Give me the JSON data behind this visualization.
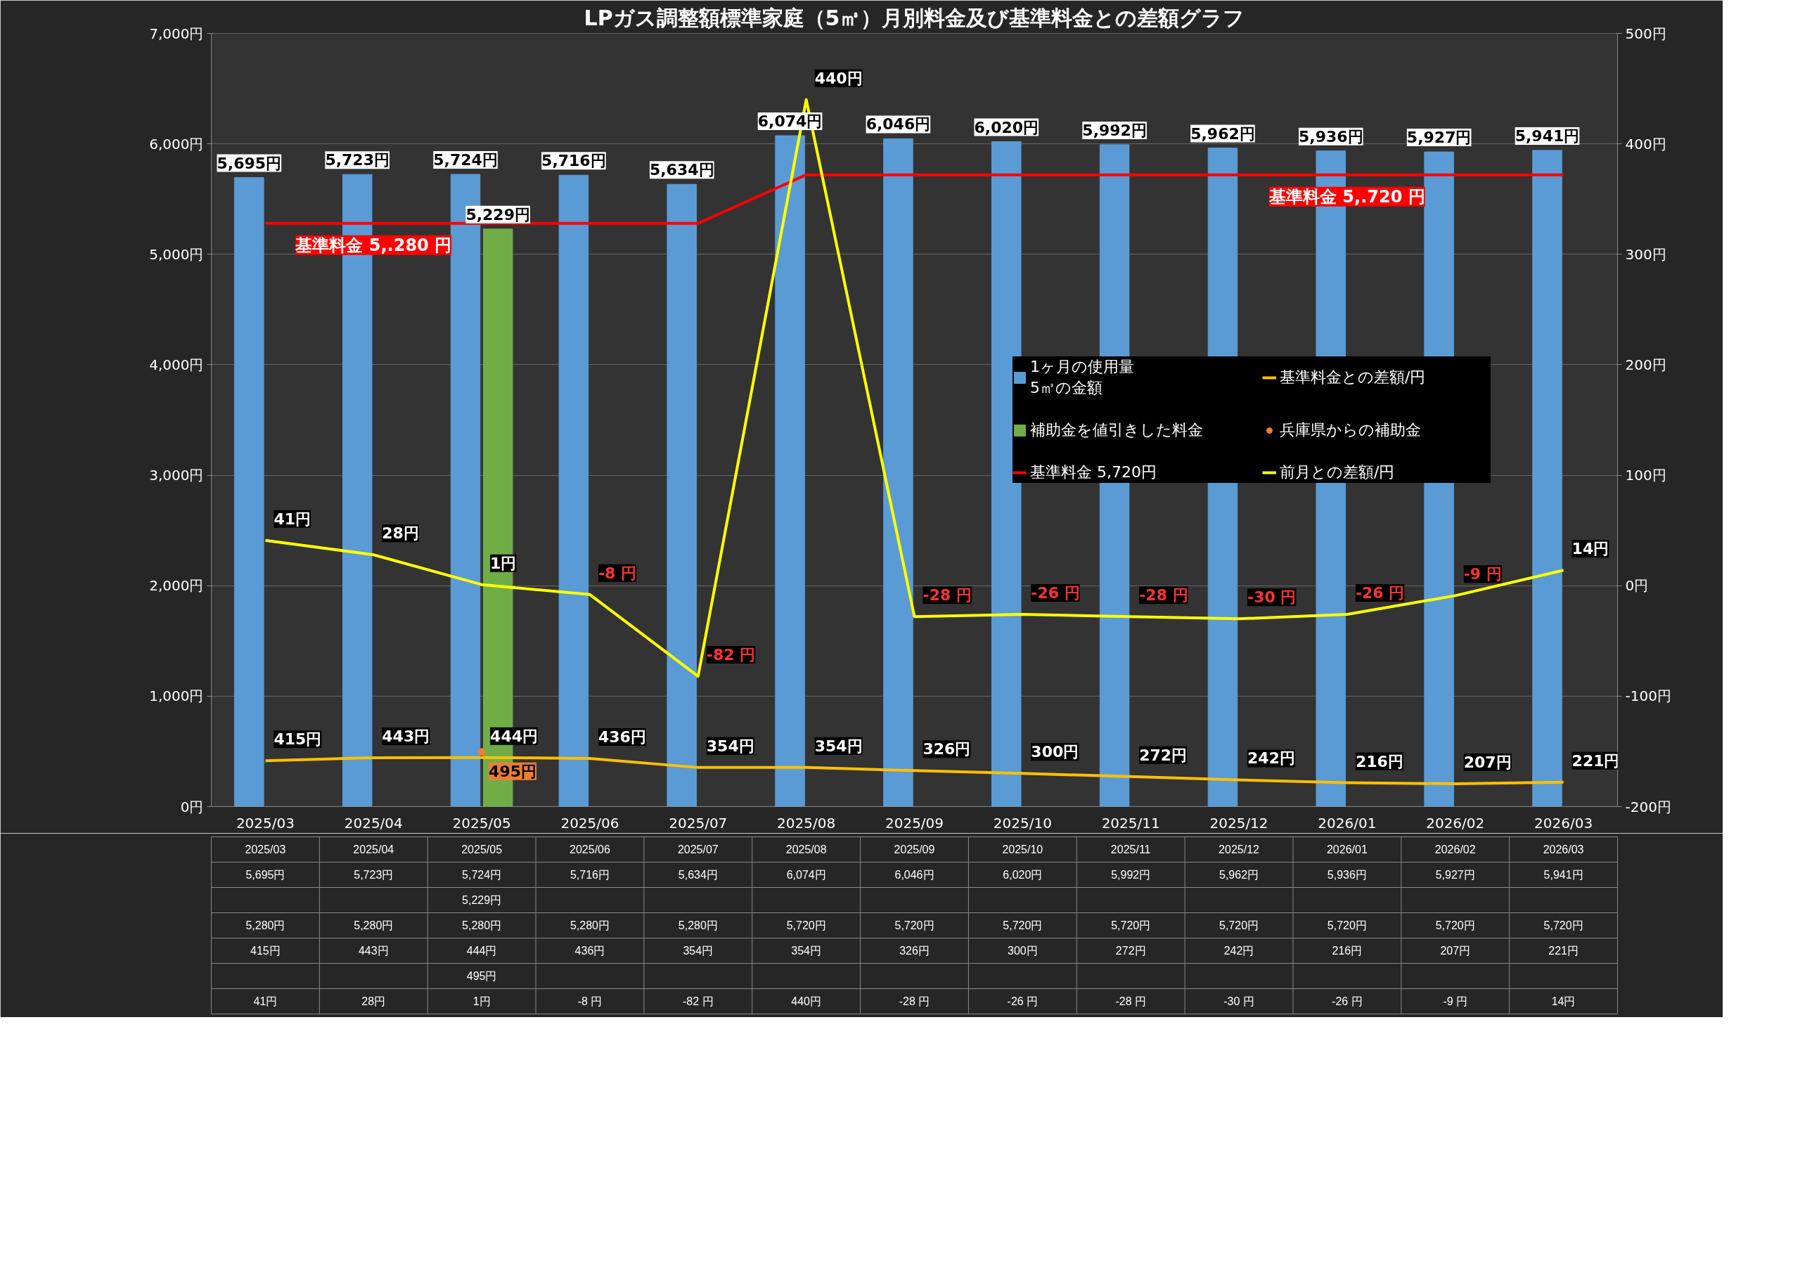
{
  "chart_data": {
    "type": "bar",
    "title": "LPガス調整額標準家庭（5㎥）月別料金及び基準料金との差額グラフ",
    "categories": [
      "2025/03",
      "2025/04",
      "2025/05",
      "2025/06",
      "2025/07",
      "2025/08",
      "2025/09",
      "2025/10",
      "2025/11",
      "2025/12",
      "2026/01",
      "2026/02",
      "2026/03"
    ],
    "series": [
      {
        "name": "1ヶ月の使用量\n5㎥の金額",
        "color": "#5b9bd5",
        "values": [
          5695,
          5723,
          5724,
          5716,
          5634,
          6074,
          6046,
          6020,
          5992,
          5962,
          5936,
          5927,
          5941
        ],
        "value_labels": [
          "5,695円",
          "5,723円",
          "5,724円",
          "5,716円",
          "5,634円",
          "6,074円",
          "6,046円",
          "6,020円",
          "5,992円",
          "5,962円",
          "5,936円",
          "5,927円",
          "5,941円"
        ]
      },
      {
        "name": "補助金を値引きした料金",
        "color": "#70ad47",
        "values": [
          null,
          null,
          5229,
          null,
          null,
          null,
          null,
          null,
          null,
          null,
          null,
          null,
          null
        ],
        "value_labels": [
          null,
          null,
          "5,229円",
          null,
          null,
          null,
          null,
          null,
          null,
          null,
          null,
          null,
          null
        ]
      },
      {
        "name": "基準料金 5,720円",
        "type": "line",
        "color": "#ff0000",
        "data_labels": false,
        "values": [
          5280,
          5280,
          5280,
          5280,
          5280,
          5720,
          5720,
          5720,
          5720,
          5720,
          5720,
          5720,
          5720
        ],
        "value_labels": [
          "5,280円",
          "5,280円",
          "5,280円",
          "5,280円",
          "5,280円",
          "5,720円",
          "5,720円",
          "5,720円",
          "5,720円",
          "5,720円",
          "5,720円",
          "5,720円",
          "5,720円"
        ]
      },
      {
        "name": "基準料金との差額/円",
        "type": "line",
        "color": "#ffc000",
        "values": [
          415,
          443,
          444,
          436,
          354,
          354,
          326,
          300,
          272,
          242,
          216,
          207,
          221
        ],
        "value_labels": [
          "415円",
          "443円",
          "444円",
          "436円",
          "354円",
          "354円",
          "326円",
          "300円",
          "272円",
          "242円",
          "216円",
          "207円",
          "221円"
        ]
      },
      {
        "name": "兵庫県からの補助金",
        "type": "scatter",
        "marker": "circle",
        "color": "#ed7d31",
        "values": [
          null,
          null,
          495,
          null,
          null,
          null,
          null,
          null,
          null,
          null,
          null,
          null,
          null
        ],
        "value_labels": [
          null,
          null,
          "495円",
          null,
          null,
          null,
          null,
          null,
          null,
          null,
          null,
          null,
          null
        ]
      },
      {
        "name": "前月との差額/円",
        "type": "line",
        "axis": "y2",
        "color": "#ffff00",
        "values": [
          41,
          28,
          1,
          -8,
          -82,
          440,
          -28,
          -26,
          -28,
          -30,
          -26,
          -9,
          14
        ],
        "value_labels": [
          "41円",
          "28円",
          "1円",
          "-8 円",
          "-82 円",
          "440円",
          "-28 円",
          "-26 円",
          "-28 円",
          "-30 円",
          "-26 円",
          "-9 円",
          "14円"
        ]
      }
    ],
    "ylim": [
      0,
      7000
    ],
    "yticks": [
      {
        "value": 0,
        "label": "0円"
      },
      {
        "value": 1000,
        "label": "1,000円"
      },
      {
        "value": 2000,
        "label": "2,000円"
      },
      {
        "value": 3000,
        "label": "3,000円"
      },
      {
        "value": 4000,
        "label": "4,000円"
      },
      {
        "value": 5000,
        "label": "5,000円"
      },
      {
        "value": 6000,
        "label": "6,000円"
      },
      {
        "value": 7000,
        "label": "7,000円"
      }
    ],
    "y2lim": [
      -200,
      500
    ],
    "y2ticks": [
      {
        "value": -200,
        "label": "-200円"
      },
      {
        "value": -100,
        "label": "-100円"
      },
      {
        "value": 0,
        "label": "0円"
      },
      {
        "value": 100,
        "label": "100円"
      },
      {
        "value": 200,
        "label": "200円"
      },
      {
        "value": 300,
        "label": "300円"
      },
      {
        "value": 400,
        "label": "400円"
      },
      {
        "value": 500,
        "label": "500円"
      }
    ],
    "grid": "y",
    "legend": "right",
    "line_style": "solid",
    "annotations": [
      {
        "text": "基準料金 5,.280 円",
        "x": "2025/04",
        "y": 5280
      },
      {
        "text": "基準料金 5,.720 円",
        "x": "2026/01",
        "y": 5720
      }
    ]
  }
}
